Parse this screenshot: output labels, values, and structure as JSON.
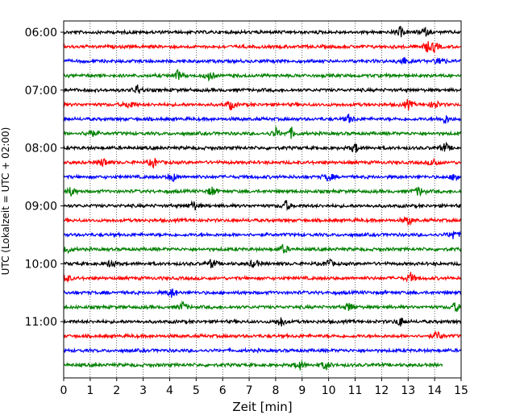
{
  "chart_data": {
    "type": "line",
    "title": "",
    "xlabel": "Zeit  [min]",
    "ylabel": "UTC (Lokalzeit = UTC + 02:00)",
    "xlim": [
      0,
      15
    ],
    "x_ticks": [
      "0",
      "1",
      "2",
      "3",
      "4",
      "5",
      "6",
      "7",
      "8",
      "9",
      "10",
      "11",
      "12",
      "13",
      "14",
      "15"
    ],
    "y_tick_labels": [
      "06:00",
      "07:00",
      "08:00",
      "09:00",
      "10:00",
      "11:00"
    ],
    "grid": "vertical-dotted",
    "trace_interval_min": 15,
    "trace_count": 24,
    "trace_colors": [
      "#000000",
      "#ff0000",
      "#0000ff",
      "#008000"
    ],
    "series": [
      {
        "start": "06:00",
        "events": [
          12.7,
          13.6
        ]
      },
      {
        "start": "06:15",
        "events": [
          13.7,
          14.0
        ]
      },
      {
        "start": "06:30",
        "events": [
          12.8,
          14.2
        ]
      },
      {
        "start": "06:45",
        "events": [
          5.5,
          4.3
        ]
      },
      {
        "start": "07:00",
        "events": [
          2.8
        ]
      },
      {
        "start": "07:15",
        "events": [
          2.5,
          6.3,
          13.0,
          14.0
        ]
      },
      {
        "start": "07:30",
        "events": [
          10.8,
          14.4
        ]
      },
      {
        "start": "07:45",
        "events": [
          1.0,
          8.6,
          8.0
        ]
      },
      {
        "start": "08:00",
        "events": [
          14.4,
          11.0
        ]
      },
      {
        "start": "08:15",
        "events": [
          1.5,
          3.4,
          14.0
        ]
      },
      {
        "start": "08:30",
        "events": [
          4.1,
          10.0,
          14.8
        ]
      },
      {
        "start": "08:45",
        "events": [
          0.3,
          5.6,
          13.4
        ]
      },
      {
        "start": "09:00",
        "events": [
          4.9,
          8.4
        ]
      },
      {
        "start": "09:15",
        "events": [
          13.0
        ]
      },
      {
        "start": "09:30",
        "events": [
          14.7
        ]
      },
      {
        "start": "09:45",
        "events": [
          0.1,
          8.3
        ]
      },
      {
        "start": "10:00",
        "events": [
          1.8,
          5.6,
          7.2,
          10.0
        ]
      },
      {
        "start": "10:15",
        "events": [
          0.1,
          13.1
        ]
      },
      {
        "start": "10:30",
        "events": [
          4.1
        ]
      },
      {
        "start": "10:45",
        "events": [
          4.5,
          10.8,
          14.8
        ]
      },
      {
        "start": "11:00",
        "events": [
          8.2,
          12.7
        ]
      },
      {
        "start": "11:15",
        "events": [
          14.1
        ]
      },
      {
        "start": "11:30",
        "events": []
      },
      {
        "start": "11:45",
        "events": [
          8.9,
          9.9
        ],
        "end_min": 14.3
      }
    ]
  }
}
